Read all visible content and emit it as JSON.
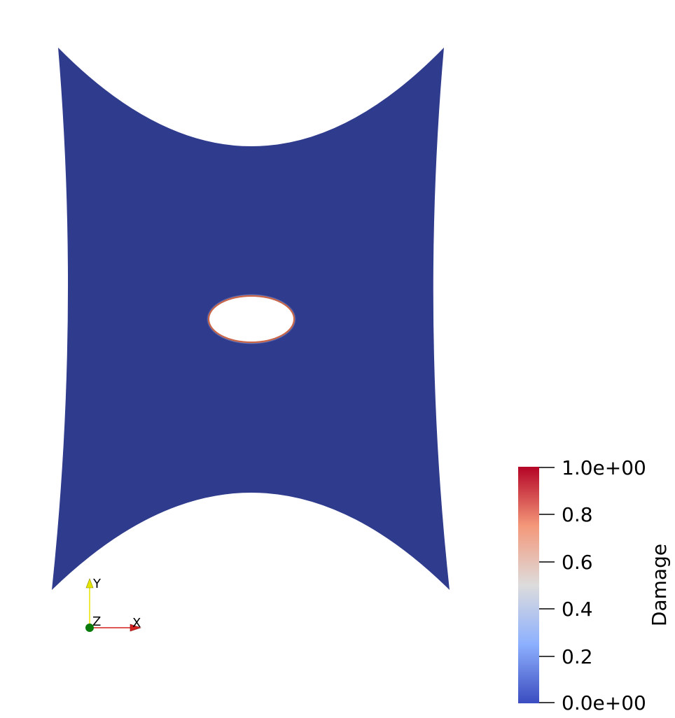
{
  "scene": {
    "field_name": "Damage",
    "background_color": "#ffffff",
    "specimen_color": "#2f3b8c",
    "hole_rim_color": "#c9664a"
  },
  "colorbar": {
    "title": "Damage",
    "tick_labels": [
      "1.0e+00",
      "0.8",
      "0.6",
      "0.4",
      "0.2",
      "0.0e+00"
    ],
    "range": [
      0,
      1
    ],
    "colormap_stops": [
      "#3b4cc0",
      "#8db0fe",
      "#dddcdc",
      "#f4987a",
      "#b40426"
    ]
  },
  "orientation_axes": {
    "x_label": "X",
    "y_label": "Y",
    "z_label": "Z",
    "x_color": "#d42020",
    "y_color": "#e6e600",
    "z_color": "#0a7a0a"
  }
}
